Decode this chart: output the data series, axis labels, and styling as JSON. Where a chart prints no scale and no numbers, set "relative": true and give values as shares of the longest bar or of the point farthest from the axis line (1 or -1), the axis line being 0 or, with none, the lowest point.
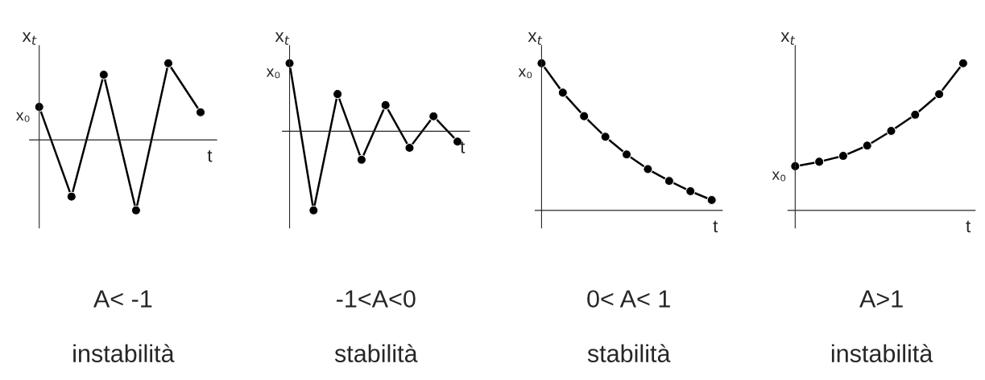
{
  "chart_data": [
    {
      "type": "line",
      "relative": true,
      "ylabel": "x$_{t}$",
      "xlabel": "t",
      "marker": "circle",
      "line_style": "solid",
      "grid": false,
      "legend": false,
      "categories": [
        null,
        null,
        null,
        null,
        null,
        null
      ],
      "series": [
        {
          "color": "#000000",
          "values": [
            0.43,
            -0.74,
            0.85,
            -0.92,
            1.0,
            0.36
          ]
        }
      ],
      "annotations": [
        "x₀",
        "A< -1",
        "instabilità"
      ]
    },
    {
      "type": "line",
      "relative": true,
      "ylabel": "x$_{t}$",
      "xlabel": "t",
      "marker": "circle",
      "line_style": "solid",
      "grid": false,
      "legend": false,
      "categories": [
        null,
        null,
        null,
        null,
        null,
        null,
        null,
        null
      ],
      "series": [
        {
          "color": "#000000",
          "values": [
            0.86,
            -1,
            0.47,
            -0.36,
            0.33,
            -0.21,
            0.19,
            -0.13
          ]
        }
      ],
      "annotations": [
        "x₀",
        "-1<A<0",
        "stabilità"
      ]
    },
    {
      "type": "line",
      "relative": true,
      "ylabel": "x$_{t}$",
      "xlabel": "t",
      "marker": "circle",
      "line_style": "solid",
      "grid": false,
      "legend": false,
      "categories": [
        null,
        null,
        null,
        null,
        null,
        null,
        null,
        null,
        null
      ],
      "series": [
        {
          "color": "#000000",
          "values": [
            1,
            0.8,
            0.64,
            0.5,
            0.38,
            0.28,
            0.2,
            0.13,
            0.07
          ]
        }
      ],
      "annotations": [
        "x₀",
        "0< A< 1",
        "stabilità"
      ]
    },
    {
      "type": "line",
      "relative": true,
      "ylabel": "x$_{t}$",
      "xlabel": "t",
      "marker": "circle",
      "line_style": "solid",
      "grid": false,
      "legend": false,
      "categories": [
        null,
        null,
        null,
        null,
        null,
        null,
        null,
        null
      ],
      "series": [
        {
          "color": "#000000",
          "values": [
            0.3,
            0.33,
            0.37,
            0.44,
            0.54,
            0.65,
            0.79,
            1
          ]
        }
      ],
      "annotations": [
        "x₀",
        "A>1",
        "instabilità"
      ]
    }
  ]
}
